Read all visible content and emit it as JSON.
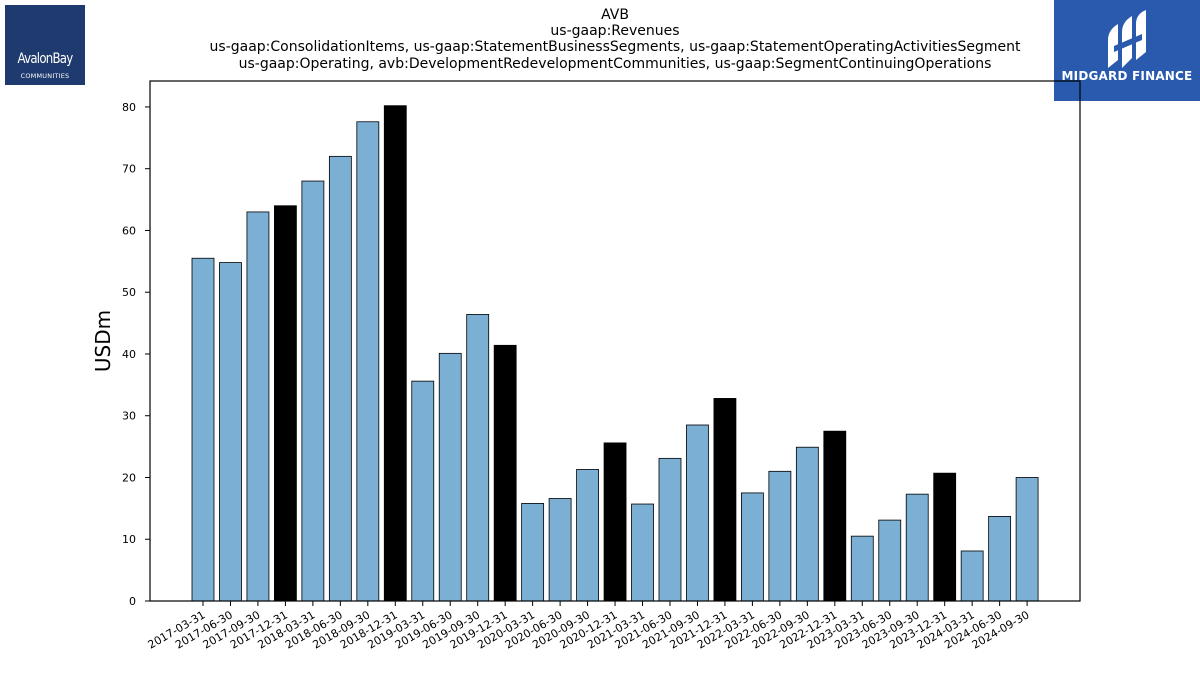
{
  "chart_data": {
    "type": "bar",
    "title_lines": [
      "AVB",
      "us-gaap:Revenues",
      "us-gaap:ConsolidationItems, us-gaap:StatementBusinessSegments, us-gaap:StatementOperatingActivitiesSegment",
      "us-gaap:Operating, avb:DevelopmentRedevelopmentCommunities, us-gaap:SegmentContinuingOperations"
    ],
    "ylabel": "USDm",
    "xlabel": "",
    "ylim": [
      0,
      84.2
    ],
    "yticks": [
      0,
      10,
      20,
      30,
      40,
      50,
      60,
      70,
      80
    ],
    "grid": false,
    "colors": {
      "quarter": "#7bafd4",
      "year_end": "#000000",
      "edge": "#000000"
    },
    "categories": [
      "2017-03-31",
      "2017-06-30",
      "2017-09-30",
      "2017-12-31",
      "2018-03-31",
      "2018-06-30",
      "2018-09-30",
      "2018-12-31",
      "2019-03-31",
      "2019-06-30",
      "2019-09-30",
      "2019-12-31",
      "2020-03-31",
      "2020-06-30",
      "2020-09-30",
      "2020-12-31",
      "2021-03-31",
      "2021-06-30",
      "2021-09-30",
      "2021-12-31",
      "2022-03-31",
      "2022-06-30",
      "2022-09-30",
      "2022-12-31",
      "2023-03-31",
      "2023-06-30",
      "2023-09-30",
      "2023-12-31",
      "2024-03-31",
      "2024-06-30",
      "2024-09-30"
    ],
    "values": [
      55.5,
      54.8,
      63.0,
      64.0,
      68.0,
      72.0,
      77.6,
      80.2,
      35.6,
      40.1,
      46.4,
      41.4,
      15.8,
      16.6,
      21.3,
      25.6,
      15.7,
      23.1,
      28.5,
      32.8,
      17.5,
      21.0,
      24.9,
      27.5,
      10.5,
      13.1,
      17.3,
      20.7,
      8.1,
      13.7,
      20.0
    ],
    "year_end_flags": [
      0,
      0,
      0,
      1,
      0,
      0,
      0,
      1,
      0,
      0,
      0,
      1,
      0,
      0,
      0,
      1,
      0,
      0,
      0,
      1,
      0,
      0,
      0,
      1,
      0,
      0,
      0,
      1,
      0,
      0,
      0
    ]
  },
  "logos": {
    "left": {
      "name": "AvalonBay",
      "sub": "COMMUNITIES"
    },
    "right": {
      "name": "MIDGARD FINANCE"
    }
  }
}
